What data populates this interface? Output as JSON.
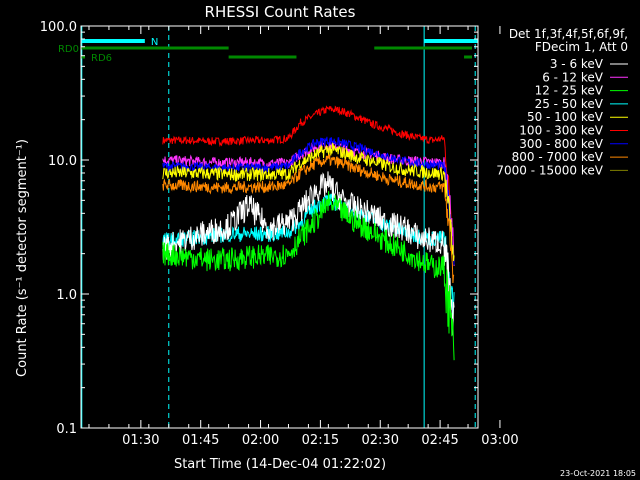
{
  "chart_data": {
    "type": "line",
    "title": "RHESSI Count Rates",
    "xlabel": "Start Time (14-Dec-04 01:22:02)",
    "ylabel": "Count Rate (s⁻¹ detector segment⁻¹)",
    "yscale": "log",
    "ylim": [
      0.1,
      100.0
    ],
    "xlim_minutes": [
      -7.0,
      92.5
    ],
    "x_ticks": [
      "01:30",
      "01:45",
      "02:00",
      "02:15",
      "02:30",
      "02:45",
      "03:00"
    ],
    "x_tick_minutes": [
      8,
      23,
      38,
      53,
      68,
      83,
      98
    ],
    "y_ticks": [
      "0.1",
      "1.0",
      "10.0",
      "100.0"
    ],
    "y_tick_values": [
      0.1,
      1.0,
      10.0,
      100.0
    ],
    "footer_timestamp": "23-Oct-2021 18:05",
    "legend": {
      "header": [
        "Det 1f,3f,4f,5f,6f,9f,",
        "FDecim 1, Att 0"
      ],
      "placement": "right"
    },
    "series": [
      {
        "name": "3 - 6 keV",
        "color": "#ffffff",
        "x": [
          13.5,
          20,
          25,
          30,
          35,
          40,
          45,
          48,
          52,
          55,
          58,
          62,
          66,
          70,
          74,
          78,
          81,
          84,
          85.5,
          86.5
        ],
        "y": [
          2.2,
          2.6,
          2.9,
          3.2,
          4.6,
          3.1,
          3.4,
          4.2,
          6.0,
          6.6,
          5.2,
          4.3,
          3.9,
          3.3,
          3.1,
          2.6,
          2.5,
          2.4,
          0.8,
          0.5
        ]
      },
      {
        "name": "6 - 12 keV",
        "color": "#ff33ff",
        "x": [
          13.5,
          20,
          25,
          30,
          35,
          40,
          45,
          48,
          52,
          55,
          58,
          62,
          66,
          70,
          74,
          78,
          81,
          84,
          85.5,
          86.5
        ],
        "y": [
          10.0,
          9.8,
          9.6,
          9.5,
          9.6,
          9.4,
          9.5,
          11.0,
          12.6,
          13.0,
          12.5,
          11.5,
          11.0,
          10.3,
          9.9,
          9.8,
          9.6,
          9.6,
          4.5,
          2.0
        ]
      },
      {
        "name": "12 - 25 keV",
        "color": "#00ff00",
        "x": [
          13.5,
          20,
          25,
          30,
          35,
          40,
          45,
          48,
          52,
          55,
          58,
          62,
          66,
          70,
          74,
          78,
          81,
          84,
          85.5,
          86.5
        ],
        "y": [
          2.0,
          1.9,
          1.8,
          1.8,
          1.9,
          1.9,
          2.0,
          2.6,
          3.6,
          4.8,
          4.2,
          3.4,
          2.9,
          2.4,
          2.1,
          1.8,
          1.6,
          1.6,
          0.7,
          0.35
        ]
      },
      {
        "name": "25 - 50 keV",
        "color": "#00ffff",
        "x": [
          13.5,
          20,
          25,
          30,
          35,
          40,
          45,
          48,
          52,
          55,
          58,
          62,
          66,
          70,
          74,
          78,
          81,
          84,
          85.5,
          86.5
        ],
        "y": [
          2.5,
          2.6,
          2.7,
          2.8,
          2.8,
          2.8,
          2.9,
          3.4,
          4.6,
          5.0,
          4.6,
          4.1,
          3.6,
          3.2,
          2.9,
          2.7,
          2.6,
          2.6,
          1.1,
          0.8
        ]
      },
      {
        "name": "50 - 100 keV",
        "color": "#ffff00",
        "x": [
          13.5,
          20,
          25,
          30,
          35,
          40,
          45,
          48,
          52,
          55,
          58,
          62,
          66,
          70,
          74,
          78,
          81,
          84,
          85.5,
          86.5
        ],
        "y": [
          8.0,
          8.0,
          7.9,
          7.8,
          7.8,
          7.8,
          7.9,
          9.5,
          11.0,
          12.0,
          11.5,
          10.5,
          9.8,
          9.0,
          8.5,
          8.2,
          8.0,
          7.9,
          3.5,
          1.5
        ]
      },
      {
        "name": "100 - 300 keV",
        "color": "#ff0000",
        "x": [
          13.5,
          20,
          25,
          30,
          35,
          40,
          45,
          48,
          52,
          55,
          58,
          62,
          66,
          70,
          74,
          78,
          81,
          84,
          85.5,
          86.5
        ],
        "y": [
          14.0,
          14.0,
          13.8,
          13.8,
          14.0,
          14.0,
          14.5,
          19.0,
          22.0,
          24.0,
          23.5,
          21.0,
          18.5,
          17.0,
          15.5,
          14.5,
          14.0,
          14.5,
          5.0,
          2.0
        ]
      },
      {
        "name": "300 - 800 keV",
        "color": "#0000ff",
        "x": [
          13.5,
          20,
          25,
          30,
          35,
          40,
          45,
          48,
          52,
          55,
          58,
          62,
          66,
          70,
          74,
          78,
          81,
          84,
          85.5,
          86.5
        ],
        "y": [
          9.0,
          8.9,
          8.8,
          8.7,
          8.8,
          8.8,
          9.0,
          11.5,
          13.5,
          14.0,
          13.5,
          12.5,
          11.5,
          10.5,
          9.8,
          9.4,
          9.2,
          9.0,
          4.0,
          1.8
        ]
      },
      {
        "name": "800 - 7000 keV",
        "color": "#ff8800",
        "x": [
          13.5,
          20,
          25,
          30,
          35,
          40,
          45,
          48,
          52,
          55,
          58,
          62,
          66,
          70,
          74,
          78,
          81,
          84,
          85.5,
          86.5
        ],
        "y": [
          6.5,
          6.4,
          6.3,
          6.2,
          6.3,
          6.3,
          6.5,
          8.0,
          9.5,
          10.0,
          9.5,
          8.6,
          7.9,
          7.2,
          6.8,
          6.5,
          6.3,
          6.3,
          2.8,
          1.2
        ]
      },
      {
        "name": "7000 - 15000 keV",
        "color": "#808000",
        "x": [],
        "y": []
      }
    ],
    "attenuator_bars": [
      {
        "label": "N",
        "color": "#00ffff",
        "row": "top",
        "segments": [
          [
            -7.0,
            9.0
          ],
          [
            79.0,
            92.5
          ]
        ]
      },
      {
        "label": "RD0",
        "color": "#008800",
        "row": "mid",
        "segments": [
          [
            -7.0,
            30.0
          ],
          [
            66.5,
            91.0
          ]
        ]
      },
      {
        "label": "RD6",
        "color": "#008800",
        "row": "low",
        "segments": [
          [
            -7.0,
            -6.0
          ],
          [
            30.0,
            47.0
          ],
          [
            89.0,
            91.0
          ]
        ]
      }
    ],
    "markers": [
      {
        "color": "#00ffff",
        "style": "solid",
        "x": -6.8
      },
      {
        "color": "#00ffff",
        "style": "dashed",
        "x": 15.0
      },
      {
        "color": "#00ffff",
        "style": "solid",
        "x": 79.0
      },
      {
        "color": "#00ffff",
        "style": "dashed",
        "x": 91.8
      }
    ]
  }
}
